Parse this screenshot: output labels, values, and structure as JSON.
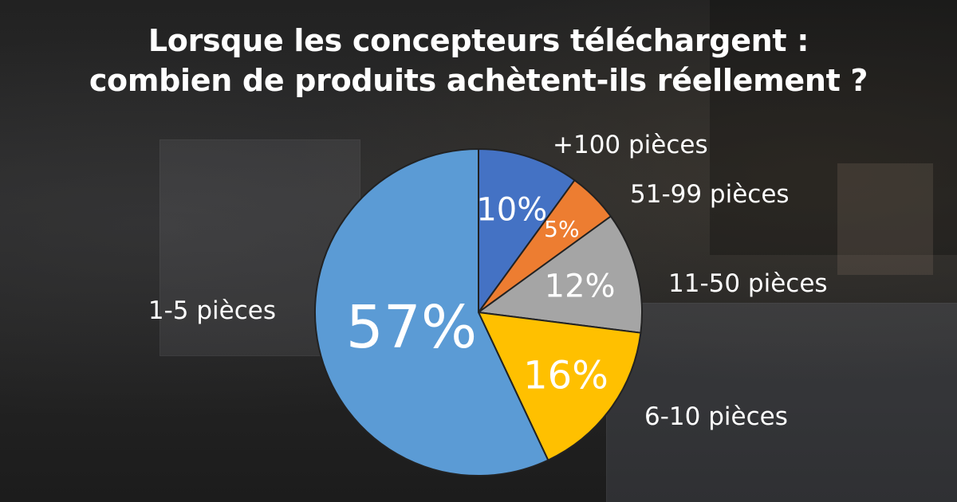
{
  "title_line_1": "Lorsque les concepteurs téléchargent :",
  "title_line_2": "combien de produits achètent-ils réellement ?",
  "chart_data": {
    "type": "pie",
    "title": "Lorsque les concepteurs téléchargent : combien de produits achètent-ils réellement ?",
    "categories": [
      "+100 pièces",
      "51-99 pièces",
      "11-50 pièces",
      "6-10 pièces",
      "1-5 pièces"
    ],
    "values": [
      10,
      5,
      12,
      16,
      57
    ],
    "value_labels": [
      "10%",
      "5%",
      "12%",
      "16%",
      "57%"
    ],
    "colors": [
      "#4472C4",
      "#ED7D31",
      "#A5A5A5",
      "#FFC000",
      "#5B9BD5"
    ],
    "start": "12 o'clock",
    "direction": "clockwise",
    "legend": "labels placed outside next to each slice"
  }
}
